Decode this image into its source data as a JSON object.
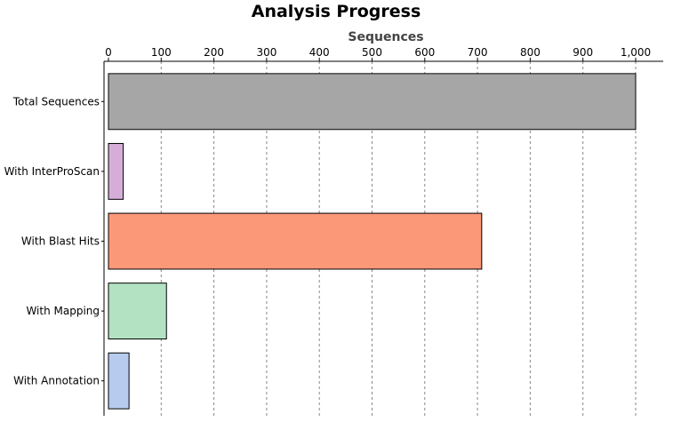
{
  "chart_data": {
    "type": "bar",
    "orientation": "horizontal",
    "title": "Analysis Progress",
    "xlabel": "Sequences",
    "ylabel": "",
    "xlim": [
      0,
      1000
    ],
    "ticks": [
      0,
      100,
      200,
      300,
      400,
      500,
      600,
      700,
      800,
      900,
      1000
    ],
    "tick_labels": [
      "0",
      "100",
      "200",
      "300",
      "400",
      "500",
      "600",
      "700",
      "800",
      "900",
      "1,000"
    ],
    "axis_position": "top",
    "grid": true,
    "categories": [
      "Total Sequences",
      "With InterProScan",
      "With Blast Hits",
      "With Mapping",
      "With Annotation"
    ],
    "values": [
      1000,
      28,
      708,
      110,
      39
    ],
    "colors": [
      "#a6a6a6",
      "#d4aed9",
      "#fa9878",
      "#b3e2c2",
      "#b6cbee"
    ]
  }
}
